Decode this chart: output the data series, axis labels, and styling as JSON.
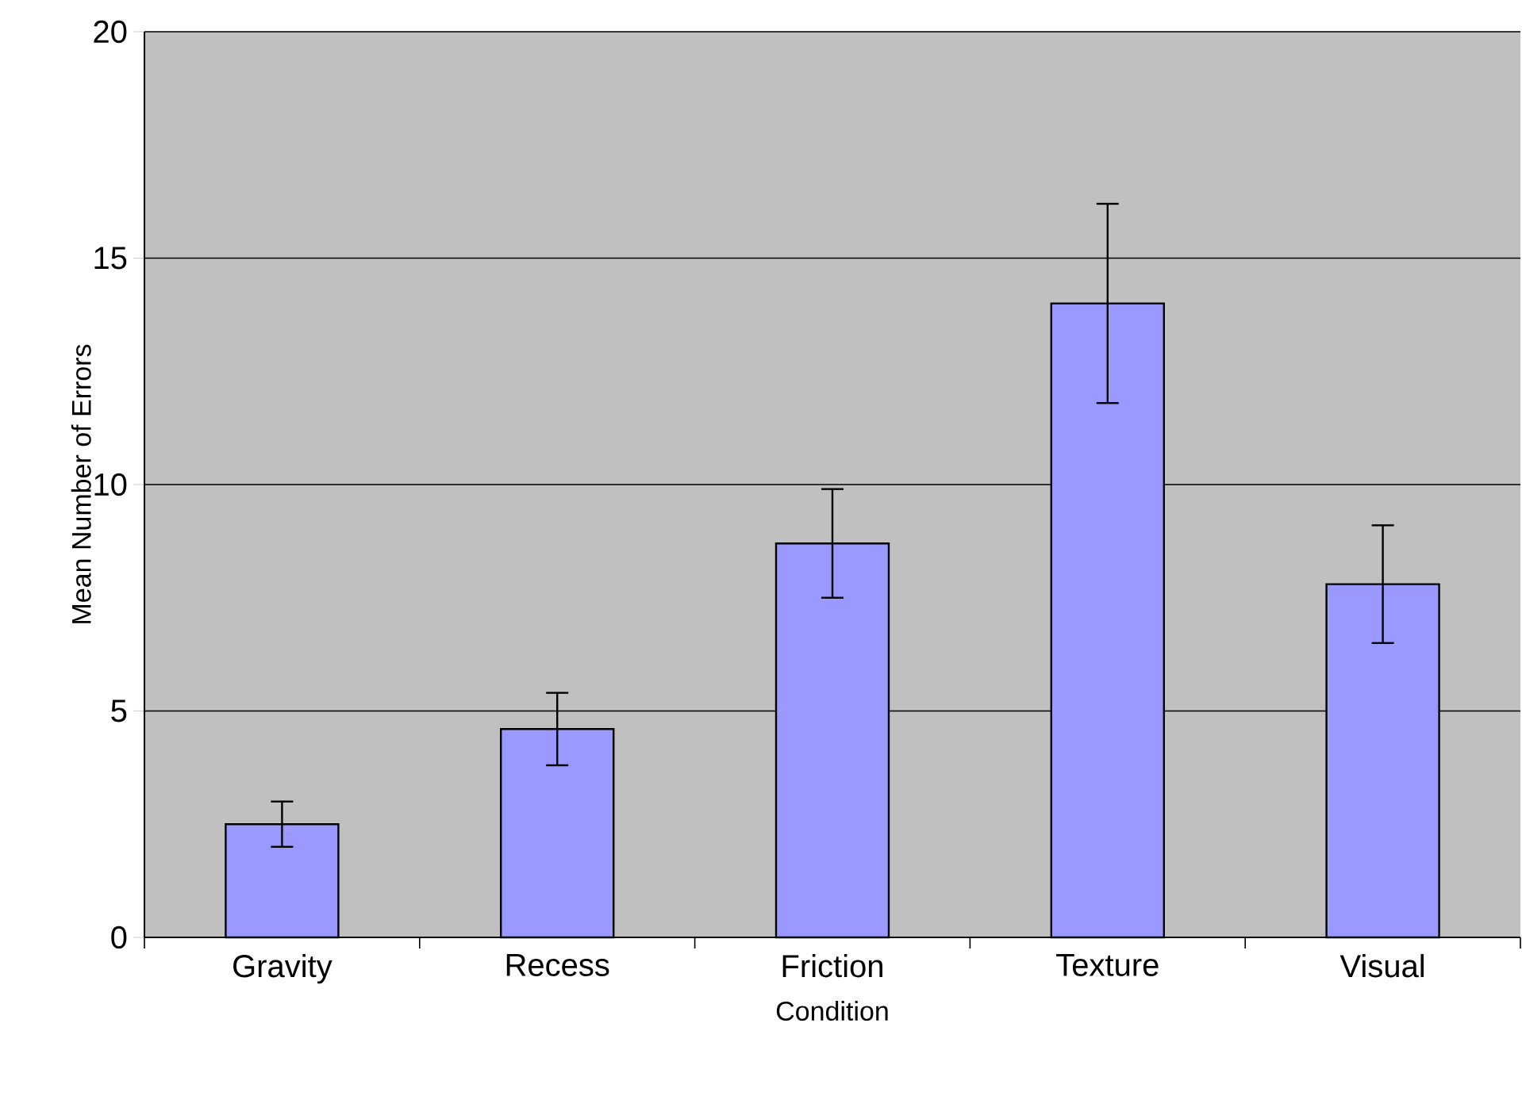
{
  "chart_data": {
    "type": "bar",
    "xlabel": "Condition",
    "ylabel": "Mean Number of Errors",
    "categories": [
      "Gravity",
      "Recess",
      "Friction",
      "Texture",
      "Visual"
    ],
    "values": [
      2.5,
      4.6,
      8.7,
      14.0,
      7.8
    ],
    "errors": [
      0.5,
      0.8,
      1.2,
      2.2,
      1.3
    ],
    "color": "#9999ff",
    "ylim": [
      0,
      20
    ],
    "yticks": [
      0,
      5,
      10,
      15,
      20
    ],
    "grid": "y"
  }
}
